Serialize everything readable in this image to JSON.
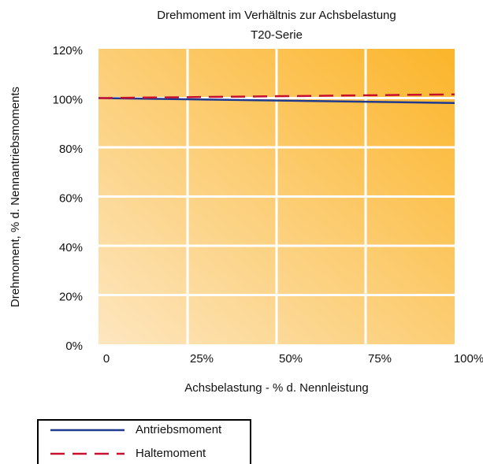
{
  "chart_data": {
    "type": "line",
    "title": "Drehmoment im Verhältnis zur Achsbelastung",
    "subtitle": "T20-Serie",
    "x_label": "Achsbelastung - % d. Nennleistung",
    "y_label": "Drehmoment, % d. Nennantriebsmoments",
    "x": [
      0,
      100
    ],
    "series": [
      {
        "name": "Antriebsmoment",
        "color": "#1f3a8f",
        "dash": false,
        "values": [
          100,
          98
        ]
      },
      {
        "name": "Haltemoment",
        "color": "#c8102e",
        "dash": true,
        "values": [
          100,
          101.5
        ]
      }
    ],
    "xlim": [
      0,
      100
    ],
    "xticks": [
      0,
      {
        "value": 25,
        "label": "25%"
      },
      {
        "value": 50,
        "label": "50%"
      },
      {
        "value": 75,
        "label": "75%"
      },
      {
        "value": 100,
        "label": "100%"
      }
    ],
    "ylim": [
      0,
      120
    ],
    "yticks": [
      {
        "value": 0,
        "label": "0%"
      },
      {
        "value": 20,
        "label": "20%"
      },
      {
        "value": 40,
        "label": "40%"
      },
      {
        "value": 60,
        "label": "60%"
      },
      {
        "value": 80,
        "label": "80%"
      },
      {
        "value": 100,
        "label": "100%"
      },
      {
        "value": 120,
        "label": "120%"
      }
    ],
    "grid": true
  }
}
